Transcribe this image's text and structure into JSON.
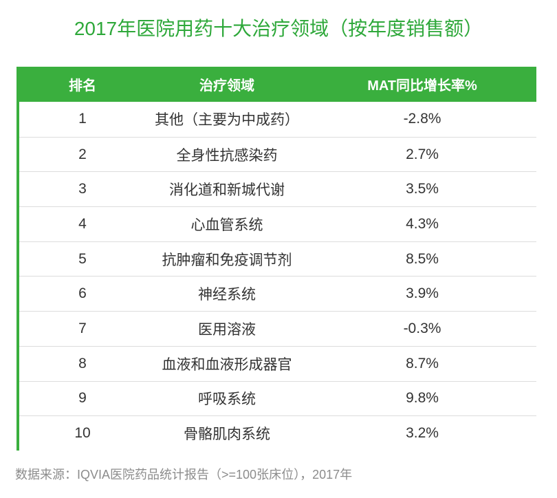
{
  "colors": {
    "accent": "#3aaf3e",
    "title": "#2ea83a",
    "text": "#333333",
    "muted": "#8c8c8c",
    "line": "#dcdcdc"
  },
  "chart_data": {
    "type": "table",
    "title": "2017年医院用药十大治疗领域（按年度销售额）",
    "columns": [
      "排名",
      "治疗领域",
      "MAT同比增长率%"
    ],
    "rows": [
      [
        "1",
        "其他（主要为中成药）",
        "-2.8%"
      ],
      [
        "2",
        "全身性抗感染药",
        "2.7%"
      ],
      [
        "3",
        "消化道和新城代谢",
        "3.5%"
      ],
      [
        "4",
        "心血管系统",
        "4.3%"
      ],
      [
        "5",
        "抗肿瘤和免疫调节剂",
        "8.5%"
      ],
      [
        "6",
        "神经系统",
        "3.9%"
      ],
      [
        "7",
        "医用溶液",
        "-0.3%"
      ],
      [
        "8",
        "血液和血液形成器官",
        "8.7%"
      ],
      [
        "9",
        "呼吸系统",
        "9.8%"
      ],
      [
        "10",
        "骨骼肌肉系统",
        "3.2%"
      ]
    ],
    "source": "数据来源：IQVIA医院药品统计报告（>=100张床位），2017年"
  }
}
